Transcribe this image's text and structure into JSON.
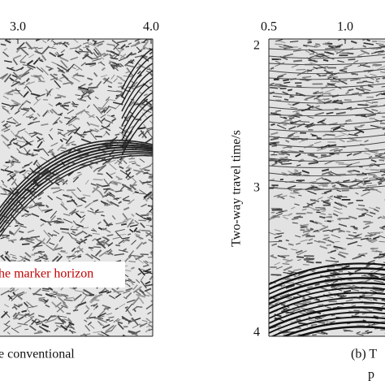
{
  "left_panel": {
    "top_ticks": [
      "3.0",
      "4.0"
    ],
    "annotation": "he marker horizon",
    "caption": "e conventional"
  },
  "right_panel": {
    "top_ticks": [
      "0.5",
      "1.0"
    ],
    "left_ticks": [
      "2",
      "3",
      "4"
    ],
    "axis_label": "Two-way travel time/s",
    "caption": [
      "(b) T",
      "p"
    ]
  }
}
